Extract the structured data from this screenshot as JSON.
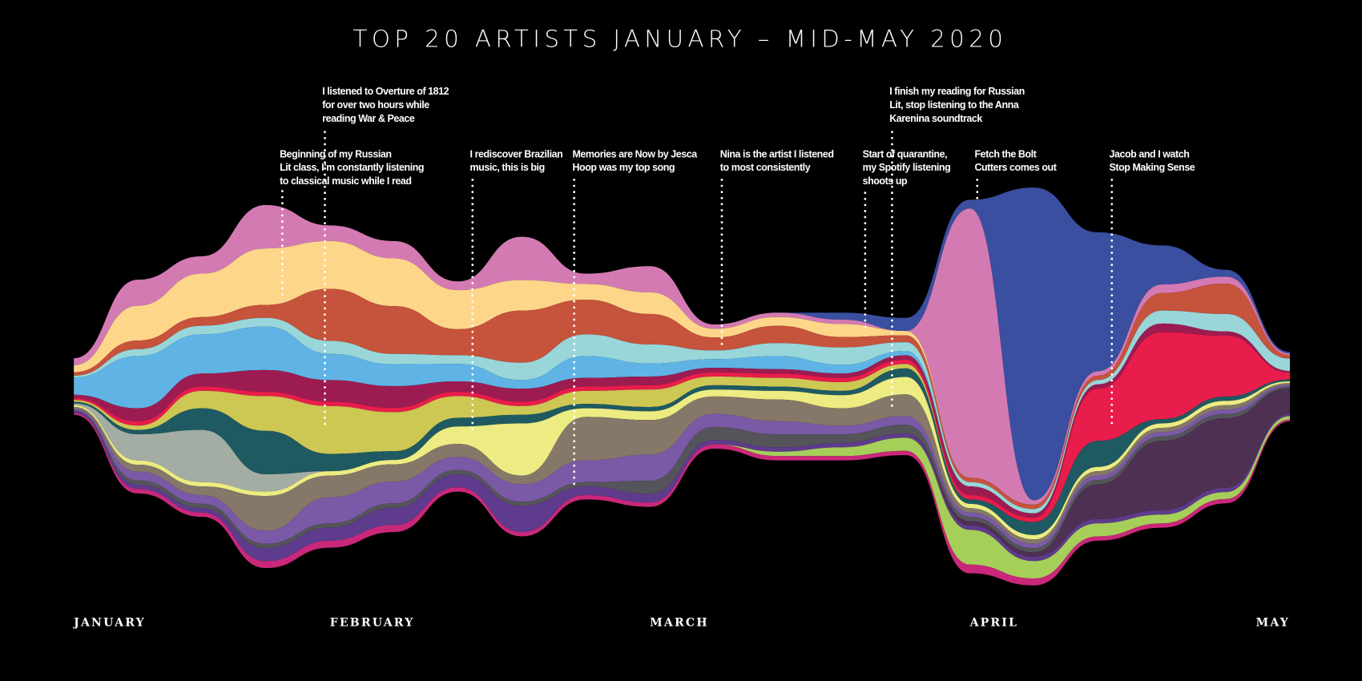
{
  "chart_data": {
    "type": "streamgraph",
    "title": "TOP 20 ARTISTS JANUARY – MID-MAY 2020",
    "categories": [
      "JANUARY",
      null,
      null,
      null,
      "FEBRUARY",
      null,
      null,
      null,
      null,
      "MARCH",
      null,
      null,
      null,
      null,
      "APRIL",
      null,
      null,
      null,
      null,
      "MAY"
    ],
    "series": [
      {
        "color": "#3a4f9f",
        "values": [
          0,
          0,
          0,
          0,
          0,
          0,
          0,
          0,
          0,
          0,
          0,
          0,
          8,
          15,
          10,
          360,
          160,
          45,
          8,
          2
        ]
      },
      {
        "color": "#d47ab3",
        "values": [
          8,
          30,
          20,
          50,
          18,
          20,
          10,
          50,
          12,
          30,
          5,
          5,
          5,
          0,
          310,
          5,
          5,
          10,
          8,
          2
        ]
      },
      {
        "color": "#fdd68a",
        "values": [
          8,
          40,
          50,
          65,
          55,
          55,
          45,
          35,
          18,
          25,
          10,
          10,
          15,
          5,
          0,
          0,
          0,
          0,
          0,
          0
        ]
      },
      {
        "color": "#c6533b",
        "values": [
          4,
          10,
          10,
          15,
          60,
          55,
          30,
          60,
          40,
          35,
          15,
          20,
          12,
          8,
          5,
          5,
          5,
          20,
          35,
          4
        ]
      },
      {
        "color": "#98d6da",
        "values": [
          2,
          8,
          10,
          10,
          15,
          12,
          10,
          20,
          25,
          22,
          10,
          15,
          20,
          10,
          5,
          5,
          5,
          15,
          20,
          14
        ]
      },
      {
        "color": "#5fb4e5",
        "values": [
          20,
          60,
          45,
          50,
          30,
          25,
          20,
          10,
          25,
          15,
          10,
          15,
          10,
          5,
          0,
          0,
          0,
          0,
          0,
          0
        ]
      },
      {
        "color": "#9c1c52",
        "values": [
          4,
          15,
          15,
          25,
          25,
          25,
          12,
          15,
          10,
          10,
          5,
          5,
          5,
          5,
          10,
          5,
          5,
          10,
          5,
          2
        ]
      },
      {
        "color": "#e91d4b",
        "values": [
          2,
          5,
          5,
          5,
          5,
          5,
          5,
          5,
          5,
          5,
          5,
          5,
          5,
          5,
          5,
          5,
          60,
          100,
          70,
          8
        ]
      },
      {
        "color": "#cdc754",
        "values": [
          2,
          5,
          20,
          40,
          55,
          45,
          25,
          10,
          15,
          20,
          10,
          10,
          10,
          5,
          0,
          0,
          0,
          0,
          0,
          0
        ]
      },
      {
        "color": "#1f5a62",
        "values": [
          2,
          5,
          25,
          50,
          20,
          10,
          10,
          10,
          5,
          5,
          5,
          5,
          5,
          10,
          5,
          15,
          30,
          5,
          5,
          2
        ]
      },
      {
        "color": "#a3ada4",
        "values": [
          2,
          30,
          60,
          20,
          0,
          0,
          0,
          0,
          0,
          0,
          0,
          0,
          0,
          0,
          0,
          0,
          0,
          0,
          0,
          0
        ]
      },
      {
        "color": "#ecec82",
        "values": [
          2,
          5,
          5,
          5,
          5,
          5,
          20,
          60,
          10,
          10,
          8,
          10,
          15,
          20,
          5,
          5,
          5,
          5,
          5,
          2
        ]
      },
      {
        "color": "#857868",
        "values": [
          2,
          8,
          10,
          40,
          25,
          20,
          15,
          10,
          50,
          40,
          20,
          25,
          20,
          25,
          5,
          5,
          5,
          5,
          5,
          2
        ]
      },
      {
        "color": "#7a5aa6",
        "values": [
          2,
          10,
          10,
          15,
          30,
          25,
          15,
          20,
          25,
          30,
          15,
          15,
          10,
          10,
          5,
          5,
          5,
          5,
          5,
          2
        ]
      },
      {
        "color": "#55545a",
        "values": [
          1,
          5,
          5,
          5,
          5,
          5,
          5,
          5,
          5,
          15,
          15,
          15,
          10,
          10,
          5,
          5,
          5,
          5,
          5,
          2
        ]
      },
      {
        "color": "#4e3152",
        "values": [
          0,
          0,
          0,
          0,
          0,
          0,
          0,
          0,
          0,
          0,
          0,
          0,
          0,
          0,
          5,
          5,
          40,
          80,
          80,
          30
        ]
      },
      {
        "color": "#5e3b8c",
        "values": [
          2,
          5,
          5,
          15,
          15,
          20,
          15,
          30,
          10,
          10,
          5,
          5,
          5,
          5,
          5,
          5,
          5,
          5,
          5,
          2
        ]
      },
      {
        "color": "#a6cf5a",
        "values": [
          0,
          0,
          0,
          0,
          0,
          0,
          0,
          0,
          0,
          0,
          0,
          5,
          10,
          15,
          40,
          20,
          15,
          10,
          8,
          4
        ]
      },
      {
        "color": "#c9287a",
        "values": [
          2,
          5,
          5,
          8,
          8,
          8,
          5,
          5,
          5,
          5,
          5,
          5,
          5,
          5,
          10,
          8,
          5,
          5,
          5,
          2
        ]
      }
    ],
    "annotations": [
      {
        "lines": [
          "Beginning of my Russian",
          "Lit class, I’m constantly listening",
          "to classical music while I read"
        ]
      },
      {
        "lines": [
          "I listened to Overture of 1812",
          "for over two hours while",
          "reading War & Peace"
        ]
      },
      {
        "lines": [
          "I rediscover Brazilian",
          "music, this is big"
        ]
      },
      {
        "lines": [
          "Memories are Now by Jesca",
          "Hoop was my top song"
        ]
      },
      {
        "lines": [
          "Nina is the artist I listened",
          "to most consistently"
        ]
      },
      {
        "lines": [
          "Start of quarantine,",
          "my Spotify listening",
          "shoots up"
        ]
      },
      {
        "lines": [
          "I finish my reading for Russian",
          "Lit, stop listening to the Anna",
          "Karenina soundtrack"
        ]
      },
      {
        "lines": [
          "Fetch the Bolt",
          "Cutters comes out"
        ]
      },
      {
        "lines": [
          "Jacob and I watch",
          "Stop Making Sense"
        ]
      }
    ]
  }
}
